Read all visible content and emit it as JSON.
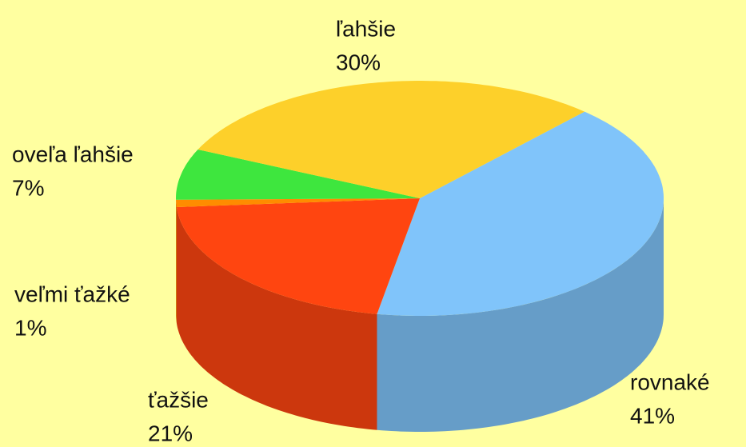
{
  "chart_data": {
    "type": "pie",
    "categories": [
      "rovnaké",
      "ťažšie",
      "veľmi ťažké",
      "oveľa ľahšie",
      "ľahšie"
    ],
    "values": [
      41,
      21,
      1,
      7,
      30
    ],
    "value_labels": [
      "41%",
      "21%",
      "1%",
      "7%",
      "30%"
    ],
    "colors": [
      "#80c4fa",
      "#ff4510",
      "#ff8c00",
      "#3ee63e",
      "#fdd02a"
    ]
  }
}
